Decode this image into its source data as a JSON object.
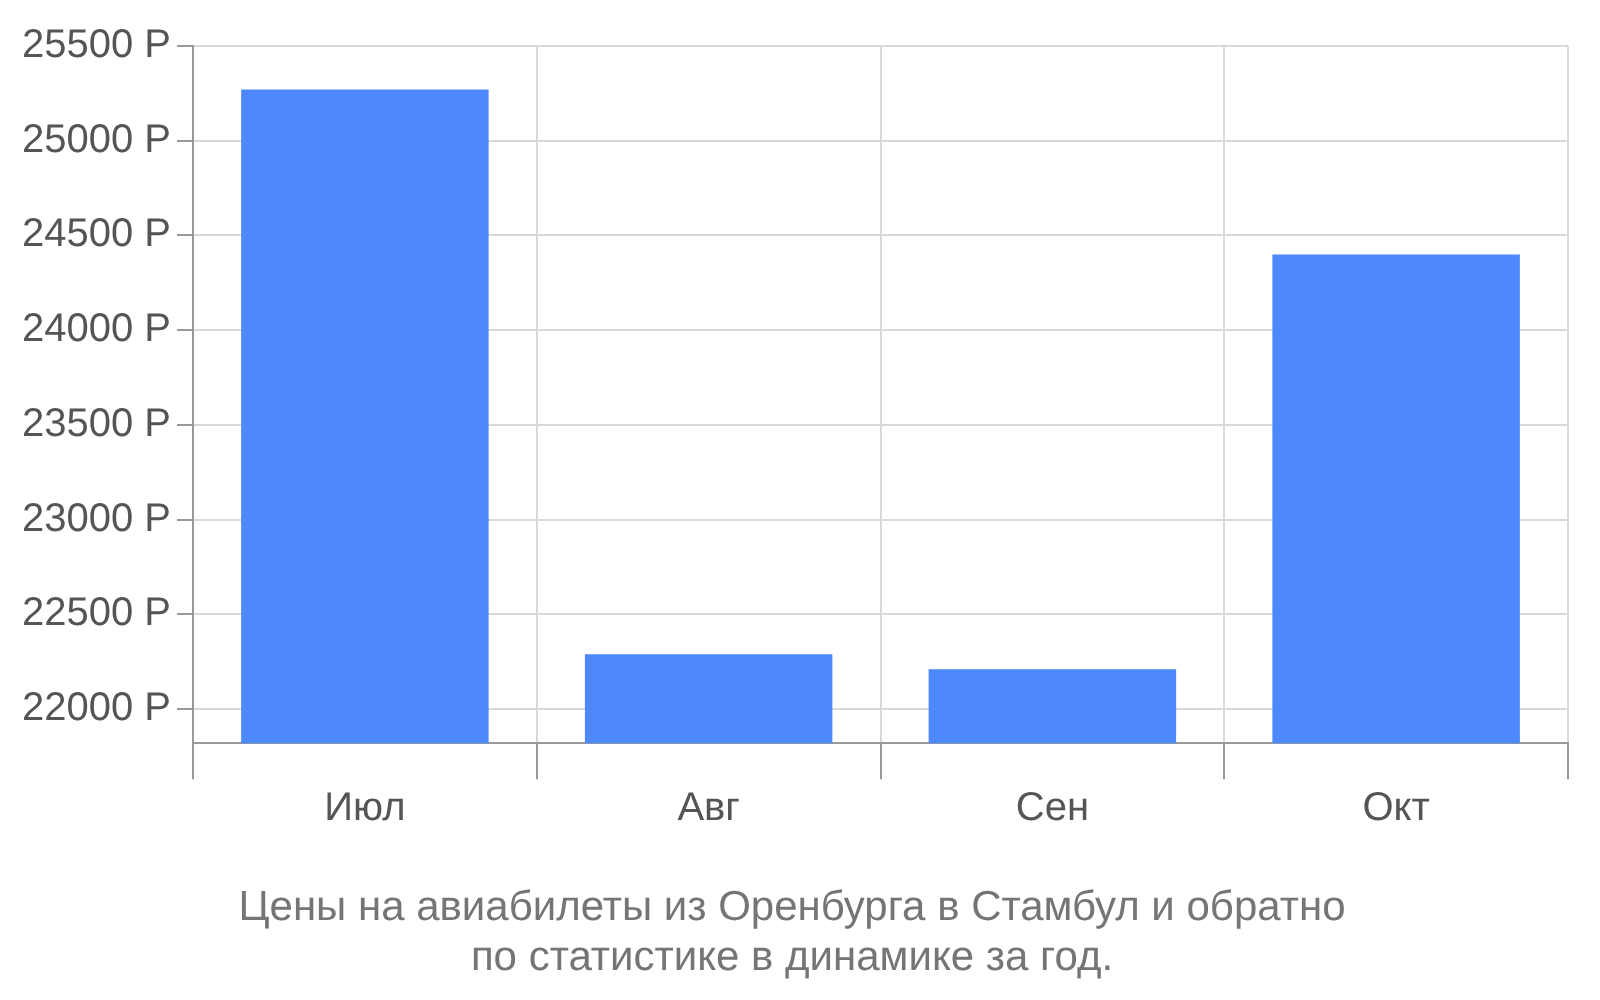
{
  "chart_data": {
    "type": "bar",
    "title": "Цены на авиабилеты из Оренбурга в Стамбул и обратно\nпо статистике в динамике за год.",
    "categories": [
      "Июл",
      "Авг",
      "Сен",
      "Окт"
    ],
    "values": [
      25270,
      22290,
      22210,
      24400
    ],
    "color": "#4d89fc",
    "ylim": [
      21820,
      25500
    ],
    "yticks": [
      {
        "value": 22000,
        "label": "22000 Р"
      },
      {
        "value": 22500,
        "label": "22500 Р"
      },
      {
        "value": 23000,
        "label": "23000 Р"
      },
      {
        "value": 23500,
        "label": "23500 Р"
      },
      {
        "value": 24000,
        "label": "24000 Р"
      },
      {
        "value": 24500,
        "label": "24500 Р"
      },
      {
        "value": 25000,
        "label": "25000 Р"
      },
      {
        "value": 25500,
        "label": "25500 Р"
      }
    ],
    "grid": true
  }
}
